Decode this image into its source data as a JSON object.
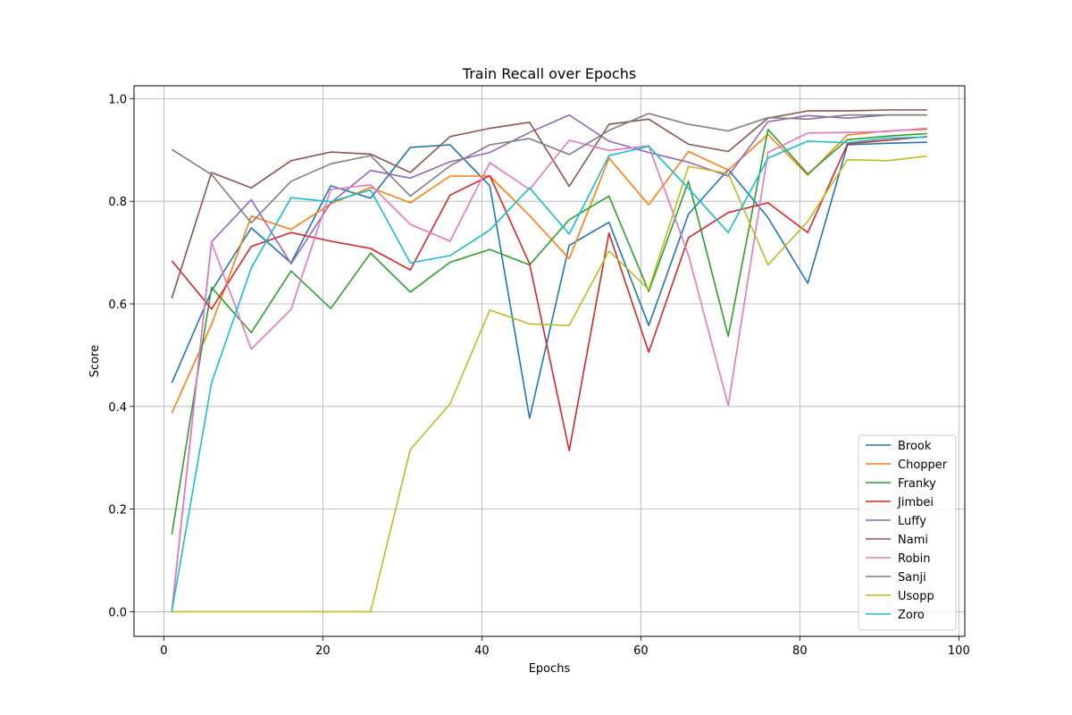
{
  "chart_data": {
    "type": "line",
    "title": "Train Recall over Epochs",
    "xlabel": "Epochs",
    "ylabel": "Score",
    "xlim": [
      -3.75,
      100.75
    ],
    "ylim": [
      -0.048,
      1.025
    ],
    "xticks": [
      0,
      20,
      40,
      60,
      80,
      100
    ],
    "xtick_labels": [
      "0",
      "20",
      "40",
      "60",
      "80",
      "100"
    ],
    "yticks": [
      0.0,
      0.2,
      0.4,
      0.6,
      0.8,
      1.0
    ],
    "ytick_labels": [
      "0.0",
      "0.2",
      "0.4",
      "0.6",
      "0.8",
      "1.0"
    ],
    "grid": true,
    "legend_position": "lower-right",
    "x": [
      1,
      6,
      11,
      16,
      21,
      26,
      31,
      36,
      41,
      46,
      51,
      56,
      61,
      66,
      71,
      76,
      81,
      86,
      91,
      96
    ],
    "series": [
      {
        "name": "Brook",
        "color": "#1f77b4",
        "values": [
          0.446,
          0.625,
          0.748,
          0.68,
          0.83,
          0.806,
          0.905,
          0.91,
          0.83,
          0.377,
          0.714,
          0.759,
          0.558,
          0.775,
          0.862,
          0.768,
          0.64,
          0.91,
          0.913,
          0.915
        ]
      },
      {
        "name": "Chopper",
        "color": "#ff7f0e",
        "values": [
          0.387,
          0.56,
          0.771,
          0.745,
          0.795,
          0.827,
          0.797,
          0.849,
          0.849,
          0.772,
          0.688,
          0.884,
          0.793,
          0.897,
          0.861,
          0.93,
          0.851,
          0.929,
          0.937,
          0.94
        ]
      },
      {
        "name": "Franky",
        "color": "#2ca02c",
        "values": [
          0.15,
          0.632,
          0.544,
          0.664,
          0.591,
          0.699,
          0.623,
          0.681,
          0.706,
          0.676,
          0.764,
          0.81,
          0.624,
          0.839,
          0.537,
          0.94,
          0.853,
          0.92,
          0.927,
          0.932
        ]
      },
      {
        "name": "Jimbei",
        "color": "#d62728",
        "values": [
          0.684,
          0.59,
          0.712,
          0.739,
          0.722,
          0.708,
          0.666,
          0.812,
          0.85,
          0.678,
          0.314,
          0.738,
          0.506,
          0.729,
          0.778,
          0.797,
          0.739,
          0.912,
          0.919,
          0.926
        ]
      },
      {
        "name": "Luffy",
        "color": "#9467bd",
        "values": [
          0.0,
          0.721,
          0.803,
          0.678,
          0.797,
          0.86,
          0.845,
          0.877,
          0.895,
          0.934,
          0.968,
          0.917,
          0.895,
          0.876,
          0.849,
          0.955,
          0.967,
          0.962,
          0.968,
          0.968
        ]
      },
      {
        "name": "Nami",
        "color": "#8c564b",
        "values": [
          0.611,
          0.856,
          0.826,
          0.879,
          0.896,
          0.892,
          0.856,
          0.926,
          0.942,
          0.954,
          0.829,
          0.95,
          0.96,
          0.911,
          0.897,
          0.962,
          0.976,
          0.976,
          0.978,
          0.978
        ]
      },
      {
        "name": "Robin",
        "color": "#e377c2",
        "values": [
          0.0,
          0.72,
          0.512,
          0.589,
          0.823,
          0.832,
          0.755,
          0.722,
          0.875,
          0.823,
          0.919,
          0.899,
          0.908,
          0.695,
          0.402,
          0.895,
          0.933,
          0.934,
          0.936,
          0.942
        ]
      },
      {
        "name": "Sanji",
        "color": "#7f7f7f",
        "values": [
          0.901,
          0.852,
          0.758,
          0.839,
          0.873,
          0.889,
          0.81,
          0.869,
          0.91,
          0.922,
          0.891,
          0.938,
          0.971,
          0.95,
          0.937,
          0.963,
          0.96,
          0.968,
          0.968,
          0.968
        ]
      },
      {
        "name": "Usopp",
        "color": "#bcbd22",
        "values": [
          0.0,
          0.0,
          0.0,
          0.0,
          0.0,
          0.0,
          0.316,
          0.405,
          0.588,
          0.561,
          0.558,
          0.703,
          0.628,
          0.868,
          0.854,
          0.676,
          0.761,
          0.881,
          0.879,
          0.888
        ]
      },
      {
        "name": "Zoro",
        "color": "#17becf",
        "values": [
          0.0,
          0.446,
          0.67,
          0.807,
          0.799,
          0.822,
          0.68,
          0.694,
          0.744,
          0.826,
          0.736,
          0.889,
          0.907,
          0.825,
          0.739,
          0.884,
          0.917,
          0.914,
          0.923,
          0.925
        ]
      }
    ]
  }
}
